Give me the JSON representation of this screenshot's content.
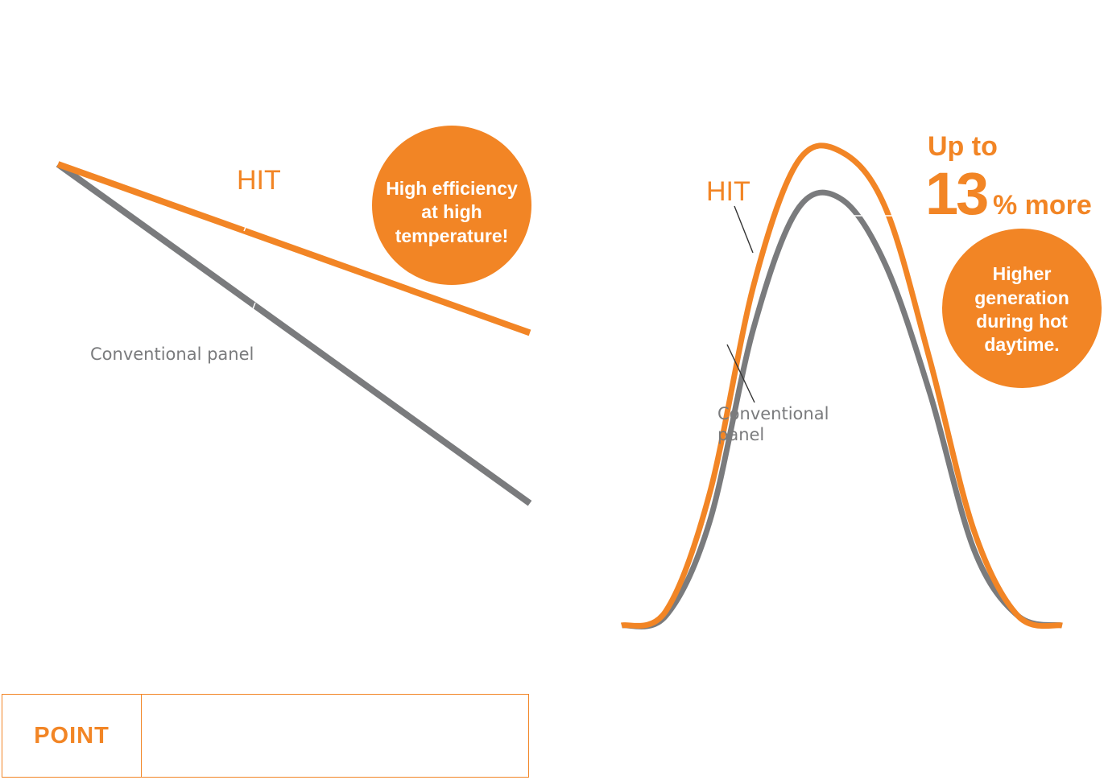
{
  "colors": {
    "hit": "#f28525",
    "conventional": "#7a7b7d",
    "badge_bg": "#f28525",
    "badge_text": "#ffffff"
  },
  "chart_data": [
    {
      "type": "line",
      "series": [
        {
          "name": "HIT",
          "x": [
            0,
            1
          ],
          "values": [
            0.0,
            -0.358
          ]
        },
        {
          "name": "Conventional panel",
          "x": [
            0,
            1
          ],
          "values": [
            0.0,
            -0.72
          ]
        }
      ],
      "annotations": [
        "High efficiency",
        "at high",
        "temperature!"
      ]
    },
    {
      "type": "line",
      "series": [
        {
          "name": "HIT",
          "x": [
            0,
            1,
            2,
            3,
            4,
            5,
            6,
            7,
            8,
            9,
            10
          ],
          "values": [
            0.0,
            0.03,
            0.28,
            0.72,
            0.98,
            1.0,
            0.88,
            0.56,
            0.2,
            0.02,
            0.0
          ]
        },
        {
          "name": "Conventional panel",
          "x": [
            0,
            1,
            2,
            3,
            4,
            5,
            6,
            7,
            8,
            9,
            10
          ],
          "values": [
            0.0,
            0.02,
            0.22,
            0.63,
            0.88,
            0.9,
            0.76,
            0.49,
            0.16,
            0.02,
            0.0
          ]
        }
      ],
      "conventional_label": [
        "Conventional",
        "panel"
      ],
      "headline": {
        "line1": "Up to",
        "number": "13",
        "suffix": "% more"
      },
      "annotations": [
        "Higher",
        "generation",
        "during hot",
        "daytime."
      ]
    }
  ],
  "point_box": {
    "label": "POINT",
    "text": ""
  }
}
